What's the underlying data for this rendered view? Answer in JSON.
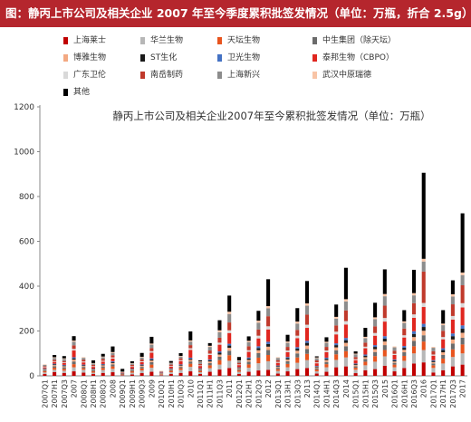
{
  "header": {
    "title": "图：静丙上市公司及相关企业 2007 年至今季度累积批签发情况（单位：万瓶，折合 2.5g）"
  },
  "chart_data": {
    "type": "bar",
    "stacked": true,
    "title": "静丙上市公司及相关企业2007年至今累积批签发情况（单位：万瓶）",
    "xlabel": "",
    "ylabel": "",
    "ylim": [
      0,
      1200
    ],
    "yticks": [
      0,
      200,
      400,
      600,
      800,
      1000,
      1200
    ],
    "grid": false,
    "legend_position": "top",
    "categories": [
      "2007Q1",
      "2007H1",
      "2007Q3",
      "2007",
      "2008Q1",
      "2008H1",
      "2008Q3",
      "2008",
      "2009Q1",
      "2009H1",
      "2009Q3",
      "2009",
      "2010Q1",
      "2010H1",
      "2010Q3",
      "2010",
      "2011Q1",
      "2011H1",
      "2011Q3",
      "2011",
      "2012Q1",
      "2012H1",
      "2012Q3",
      "2012",
      "2013Q1",
      "2013H1",
      "2013Q3",
      "2013",
      "2014Q1",
      "2014H1",
      "2014Q3",
      "2014",
      "2015Q1",
      "2015H1",
      "2015Q3",
      "2015",
      "2016Q1",
      "2016H1",
      "2016Q3",
      "2016",
      "2017Q1",
      "2017H1",
      "2017Q3",
      "2017"
    ],
    "series": [
      {
        "name": "上海莱士",
        "color": "#c00000",
        "values": [
          8,
          17,
          13,
          20,
          14,
          8,
          13,
          16,
          2,
          6,
          12,
          18,
          2,
          8,
          13,
          20,
          8,
          18,
          28,
          35,
          8,
          18,
          24,
          27,
          10,
          20,
          30,
          35,
          10,
          18,
          38,
          42,
          12,
          25,
          30,
          45,
          20,
          35,
          55,
          60,
          15,
          25,
          42,
          50
        ]
      },
      {
        "name": "华兰生物",
        "color": "#b7b7b7",
        "values": [
          7,
          10,
          10,
          18,
          13,
          6,
          13,
          15,
          2,
          8,
          12,
          18,
          4,
          8,
          13,
          20,
          8,
          16,
          22,
          32,
          10,
          18,
          32,
          38,
          12,
          18,
          28,
          35,
          10,
          20,
          33,
          40,
          15,
          22,
          33,
          42,
          18,
          32,
          45,
          55,
          20,
          30,
          42,
          50
        ]
      },
      {
        "name": "天坛生物",
        "color": "#e8541e",
        "values": [
          6,
          9,
          8,
          14,
          7,
          6,
          9,
          11,
          2,
          6,
          9,
          14,
          3,
          6,
          8,
          14,
          6,
          13,
          20,
          25,
          7,
          15,
          25,
          28,
          8,
          15,
          24,
          28,
          8,
          14,
          25,
          28,
          9,
          16,
          25,
          28,
          12,
          22,
          32,
          38,
          12,
          22,
          34,
          40
        ]
      },
      {
        "name": "中生集团（除天坛）",
        "color": "#6b6b6b",
        "values": [
          5,
          7,
          7,
          12,
          6,
          5,
          7,
          9,
          2,
          5,
          7,
          11,
          2,
          4,
          6,
          10,
          5,
          10,
          15,
          20,
          5,
          12,
          20,
          22,
          6,
          12,
          18,
          22,
          6,
          10,
          18,
          22,
          7,
          12,
          18,
          22,
          8,
          16,
          24,
          28,
          8,
          16,
          26,
          30
        ]
      },
      {
        "name": "博雅生物",
        "color": "#f3a982",
        "values": [
          3,
          5,
          5,
          8,
          4,
          3,
          5,
          6,
          1,
          3,
          5,
          7,
          1,
          3,
          5,
          7,
          3,
          7,
          10,
          13,
          4,
          8,
          13,
          15,
          4,
          8,
          12,
          15,
          4,
          8,
          13,
          15,
          5,
          8,
          13,
          16,
          6,
          11,
          17,
          20,
          6,
          12,
          18,
          22
        ]
      },
      {
        "name": "ST生化",
        "color": "#1a1a1a",
        "values": [
          2,
          3,
          3,
          6,
          3,
          2,
          3,
          4,
          1,
          2,
          3,
          5,
          1,
          2,
          3,
          5,
          2,
          5,
          8,
          10,
          2,
          6,
          10,
          12,
          3,
          6,
          9,
          12,
          3,
          6,
          10,
          12,
          4,
          7,
          10,
          13,
          5,
          9,
          14,
          17,
          5,
          10,
          15,
          18
        ]
      },
      {
        "name": "卫光生物",
        "color": "#4472c4",
        "values": [
          2,
          3,
          3,
          5,
          3,
          2,
          3,
          4,
          1,
          2,
          3,
          5,
          1,
          2,
          3,
          5,
          2,
          4,
          6,
          8,
          2,
          5,
          8,
          10,
          3,
          5,
          7,
          9,
          3,
          5,
          8,
          10,
          3,
          5,
          8,
          11,
          4,
          8,
          12,
          14,
          4,
          8,
          12,
          15
        ]
      },
      {
        "name": "泰邦生物（CBPO）",
        "color": "#e0261f",
        "values": [
          4,
          8,
          8,
          30,
          10,
          8,
          10,
          12,
          2,
          8,
          10,
          25,
          2,
          8,
          15,
          35,
          10,
          20,
          30,
          48,
          10,
          25,
          35,
          55,
          12,
          22,
          40,
          58,
          12,
          25,
          40,
          60,
          15,
          28,
          42,
          65,
          20,
          38,
          60,
          75,
          20,
          40,
          62,
          80
        ]
      },
      {
        "name": "广东卫伦",
        "color": "#d9d9d9",
        "values": [
          2,
          3,
          3,
          7,
          4,
          3,
          4,
          5,
          1,
          3,
          4,
          7,
          1,
          3,
          4,
          7,
          3,
          6,
          9,
          12,
          3,
          7,
          12,
          14,
          4,
          7,
          11,
          14,
          4,
          7,
          12,
          15,
          4,
          7,
          12,
          16,
          5,
          10,
          15,
          18,
          5,
          10,
          16,
          19
        ]
      },
      {
        "name": "南岳制药",
        "color": "#c0392b",
        "values": [
          4,
          6,
          6,
          16,
          8,
          6,
          8,
          10,
          2,
          6,
          8,
          14,
          2,
          6,
          8,
          14,
          6,
          14,
          22,
          35,
          7,
          18,
          28,
          45,
          8,
          16,
          26,
          45,
          9,
          16,
          28,
          48,
          10,
          18,
          30,
          55,
          14,
          30,
          50,
          140,
          15,
          28,
          52,
          80
        ]
      },
      {
        "name": "上海新兴",
        "color": "#8c8c8c",
        "values": [
          6,
          9,
          9,
          16,
          8,
          6,
          8,
          10,
          2,
          6,
          9,
          15,
          2,
          6,
          8,
          16,
          8,
          16,
          25,
          38,
          8,
          18,
          30,
          35,
          10,
          18,
          28,
          40,
          10,
          18,
          30,
          40,
          12,
          20,
          32,
          42,
          15,
          25,
          35,
          45,
          15,
          25,
          35,
          45
        ]
      },
      {
        "name": "武汉中原瑞德",
        "color": "#f8c4a6",
        "values": [
          2,
          3,
          3,
          5,
          3,
          2,
          3,
          4,
          1,
          2,
          3,
          5,
          1,
          2,
          3,
          5,
          3,
          5,
          8,
          10,
          3,
          6,
          9,
          10,
          3,
          6,
          9,
          10,
          3,
          5,
          8,
          10,
          3,
          6,
          8,
          10,
          4,
          7,
          10,
          12,
          4,
          7,
          10,
          12
        ]
      },
      {
        "name": "其他",
        "color": "#000000",
        "values": [
          0,
          10,
          10,
          20,
          0,
          12,
          12,
          25,
          12,
          8,
          17,
          30,
          0,
          8,
          12,
          40,
          5,
          12,
          45,
          72,
          15,
          20,
          44,
          120,
          0,
          30,
          60,
          100,
          5,
          20,
          55,
          140,
          10,
          40,
          65,
          110,
          0,
          50,
          104,
          384,
          0,
          60,
          62,
          264
        ]
      }
    ]
  }
}
